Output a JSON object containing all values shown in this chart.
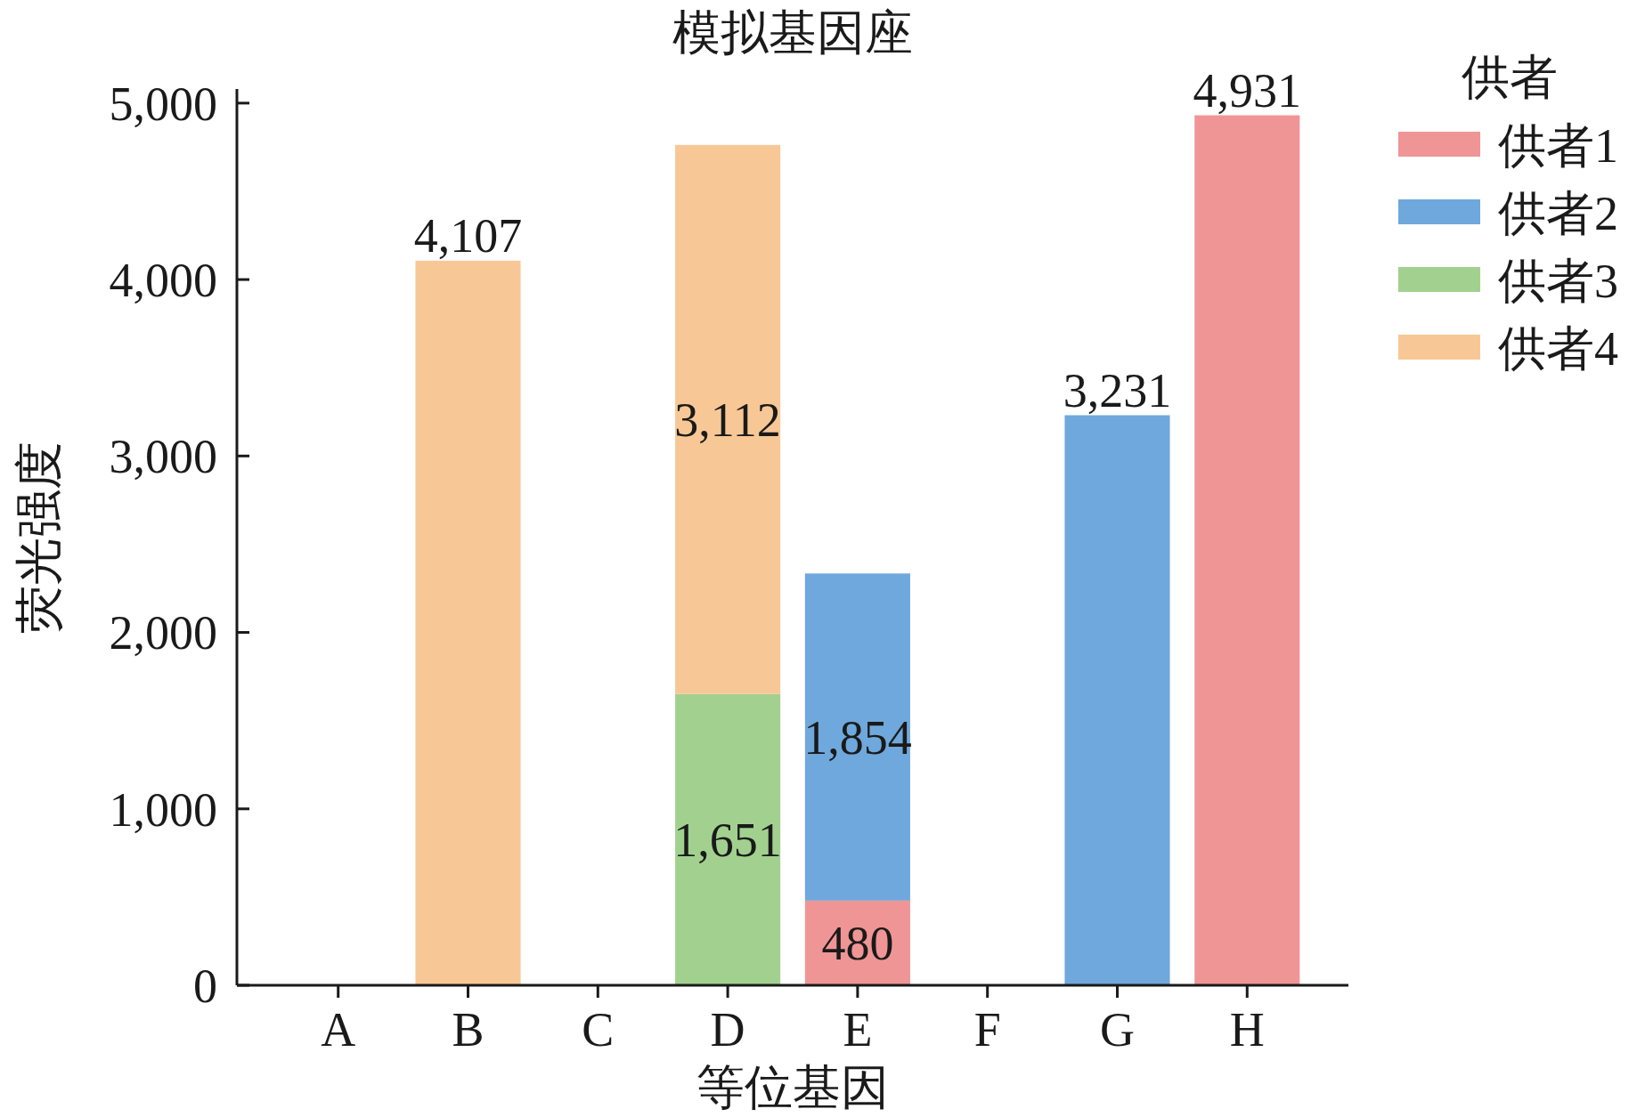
{
  "chart_data": {
    "type": "bar",
    "title": "模拟基因座",
    "xlabel": "等位基因",
    "ylabel": "荧光强度",
    "legend_title": "供者",
    "stacked": true,
    "legend": "top right",
    "grid": false,
    "categories": [
      "A",
      "B",
      "C",
      "D",
      "E",
      "F",
      "G",
      "H"
    ],
    "ylim": [
      0,
      5080
    ],
    "yticks": [
      {
        "value": 0,
        "label": "0"
      },
      {
        "value": 1000,
        "label": "1,000"
      },
      {
        "value": 2000,
        "label": "2,000"
      },
      {
        "value": 3000,
        "label": "3,000"
      },
      {
        "value": 4000,
        "label": "4,000"
      },
      {
        "value": 5000,
        "label": "5,000"
      }
    ],
    "series": [
      {
        "name": "供者1",
        "color": "#f09595",
        "values": [
          null,
          null,
          null,
          null,
          480,
          null,
          null,
          4931
        ],
        "value_labels": [
          null,
          null,
          null,
          null,
          "480",
          null,
          null,
          "4,931"
        ]
      },
      {
        "name": "供者2",
        "color": "#6fa8dc",
        "values": [
          null,
          null,
          null,
          null,
          1854,
          null,
          3231,
          null
        ],
        "value_labels": [
          null,
          null,
          null,
          null,
          "1,854",
          null,
          "3,231",
          null
        ]
      },
      {
        "name": "供者3",
        "color": "#a2d18f",
        "values": [
          null,
          null,
          null,
          1651,
          null,
          null,
          null,
          null
        ],
        "value_labels": [
          null,
          null,
          null,
          "1,651",
          null,
          null,
          null,
          null
        ]
      },
      {
        "name": "供者4",
        "color": "#f7c896",
        "values": [
          null,
          4107,
          null,
          3112,
          null,
          null,
          null,
          null
        ],
        "value_labels": [
          null,
          "4,107",
          null,
          "3,112",
          null,
          null,
          null,
          null
        ]
      }
    ]
  }
}
